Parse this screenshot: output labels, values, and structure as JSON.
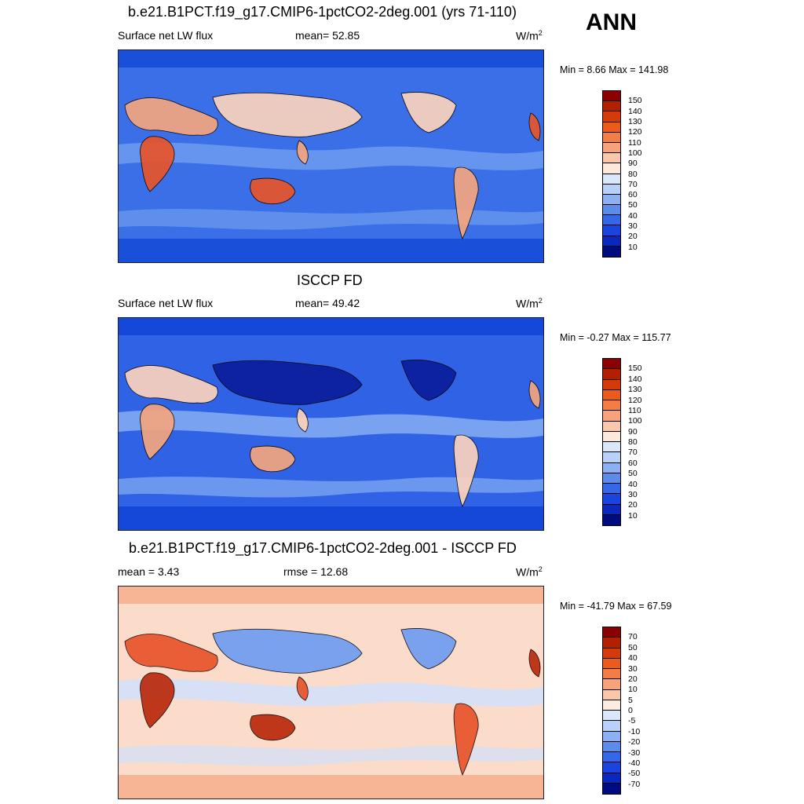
{
  "header": {
    "season": "ANN"
  },
  "panels": [
    {
      "title": "b.e21.B1PCT.f19_g17.CMIP6-1pctCO2-2deg.001 (yrs 71-110)",
      "left_label": "Surface net LW flux",
      "mid_label": "mean=  52.85",
      "units": "W/m",
      "units_sup": "2",
      "minmax": "Min =   8.66 Max = 141.98",
      "colorbar": {
        "labels": [
          "150",
          "140",
          "130",
          "120",
          "110",
          "100",
          "90",
          "80",
          "70",
          "60",
          "50",
          "40",
          "30",
          "20",
          "10"
        ],
        "colors": [
          "#8b0000",
          "#b22000",
          "#d43a0a",
          "#ec5a1c",
          "#f47c45",
          "#f8a27c",
          "#fbc7ab",
          "#fde8dc",
          "#dbe7fb",
          "#b9d0f8",
          "#8cb0f2",
          "#5b8ceb",
          "#3568e6",
          "#1a44df",
          "#0a28c0",
          "#000b80"
        ]
      },
      "map": {
        "base": "#3a6fe8",
        "band": "#1a4fd9",
        "ocean_mid": "#6f9cf0",
        "land_hot": [
          "#f4a580",
          "#e8542a",
          "#fbd2bd"
        ]
      }
    },
    {
      "title": "ISCCP FD",
      "left_label": "Surface net LW flux",
      "mid_label": "mean=  49.42",
      "units": "W/m",
      "units_sup": "2",
      "minmax": "Min =  -0.27 Max = 115.77",
      "colorbar": {
        "labels": [
          "150",
          "140",
          "130",
          "120",
          "110",
          "100",
          "90",
          "80",
          "70",
          "60",
          "50",
          "40",
          "30",
          "20",
          "10"
        ],
        "colors": [
          "#8b0000",
          "#b22000",
          "#d43a0a",
          "#ec5a1c",
          "#f47c45",
          "#f8a27c",
          "#fbc7ab",
          "#fde8dc",
          "#dbe7fb",
          "#b9d0f8",
          "#8cb0f2",
          "#5b8ceb",
          "#3568e6",
          "#1a44df",
          "#0a28c0",
          "#000b80"
        ]
      },
      "map": {
        "base": "#2f62e4",
        "band": "#1547d8",
        "ocean_mid": "#86aef2",
        "land_hot": [
          "#fbd2bd",
          "#f4a580",
          "#0a1d9c"
        ]
      }
    },
    {
      "title": "b.e21.B1PCT.f19_g17.CMIP6-1pctCO2-2deg.001 - ISCCP FD",
      "left_label": "mean =   3.43",
      "mid_label": "rmse =  12.68",
      "units": "W/m",
      "units_sup": "2",
      "minmax": "Min = -41.79 Max =  67.59",
      "colorbar": {
        "labels": [
          "70",
          "50",
          "40",
          "30",
          "20",
          "10",
          "5",
          "0",
          "-5",
          "-10",
          "-20",
          "-30",
          "-40",
          "-50",
          "-70"
        ],
        "colors": [
          "#8b0000",
          "#b22000",
          "#d43a0a",
          "#ec5a1c",
          "#f47c45",
          "#f8a27c",
          "#fbc7ab",
          "#fdece2",
          "#dbe7fb",
          "#b9d0f8",
          "#8cb0f2",
          "#5b8ceb",
          "#3568e6",
          "#1a44df",
          "#0a28c0",
          "#000b80"
        ]
      },
      "map": {
        "base": "#fbdccb",
        "band": "#f7b596",
        "ocean_mid": "#d0e0fb",
        "land_hot": [
          "#e8542a",
          "#b92a0c",
          "#6f9cf0"
        ]
      }
    }
  ]
}
